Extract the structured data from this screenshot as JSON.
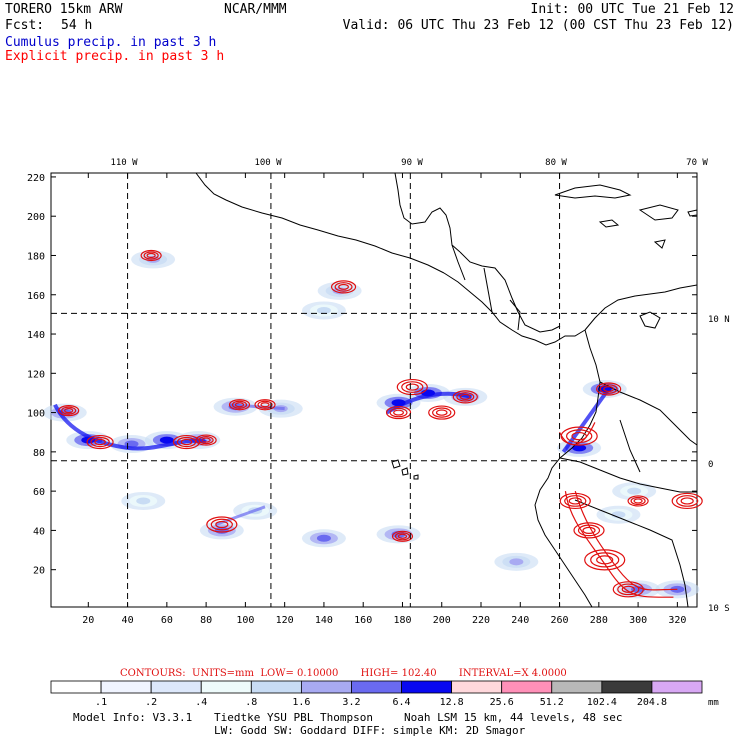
{
  "header": {
    "model": "TORERO  15km ARW",
    "center": "NCAR/MMM",
    "init": "Init: 00 UTC Tue 21 Feb 12",
    "fcst_label": "Fcst:",
    "fcst_value": "54 h",
    "valid": "Valid: 06 UTC Thu 23 Feb 12 (00 CST Thu 23 Feb 12)",
    "cumulus": "Cumulus precip. in past 3 h",
    "explicit": "Explicit precip. in past 3 h"
  },
  "colors": {
    "cumulus_text": "#0000cc",
    "explicit_text": "#ff0000",
    "contour": "#e01010",
    "coast": "#000000"
  },
  "chart_data": {
    "type": "heatmap",
    "title": "Cumulus precip. in past 3 h / Explicit precip. in past 3 h",
    "x_grid": {
      "range": [
        1,
        330
      ],
      "ticks": [
        20,
        40,
        60,
        80,
        100,
        120,
        140,
        160,
        180,
        200,
        220,
        240,
        260,
        280,
        300,
        320
      ]
    },
    "y_grid": {
      "range": [
        1,
        222
      ],
      "ticks": [
        20,
        40,
        60,
        80,
        100,
        120,
        140,
        160,
        180,
        200,
        220
      ]
    },
    "lon_labels": [
      {
        "value": -110,
        "text": "110 W"
      },
      {
        "value": -100,
        "text": "100 W"
      },
      {
        "value": -90,
        "text": "90 W"
      },
      {
        "value": -80,
        "text": "80 W"
      },
      {
        "value": -70,
        "text": "70 W"
      }
    ],
    "lat_labels": [
      {
        "value": 10,
        "text": "10 N"
      },
      {
        "value": 0,
        "text": "0"
      },
      {
        "value": -10,
        "text": "10 S"
      }
    ],
    "meridian_grid_x": [
      40,
      113,
      184,
      260
    ],
    "parallel_grid_y": [
      75.5,
      150.5
    ],
    "contours": {
      "units": "mm",
      "low": 0.1,
      "high": 102.4,
      "interval": 4.0
    },
    "contour_text": {
      "contours": "CONTOURS:",
      "units": "UNITS=mm",
      "low": "LOW= 0.10000",
      "high": "HIGH= 102.40",
      "interval": "INTERVAL=X  4.0000"
    },
    "colorbar": {
      "unit_label": "mm",
      "levels": [
        ".1",
        ".2",
        ".4",
        ".8",
        "1.6",
        "3.2",
        "6.4",
        "12.8",
        "25.6",
        "51.2",
        "102.4",
        "204.8"
      ],
      "colors": [
        "#ffffff",
        "#f0f4ff",
        "#dde8fb",
        "#eefbfb",
        "#c8dcf4",
        "#a8aaf2",
        "#6a6af0",
        "#0808f0",
        "#ffd8dc",
        "#ff90b8",
        "#b8b8b8",
        "#3a3a3a",
        "#d8a8f4"
      ]
    },
    "precip_regions": [
      {
        "grid": [
          8,
          100
        ],
        "level": 6
      },
      {
        "grid": [
          20,
          86
        ],
        "level": 7
      },
      {
        "grid": [
          42,
          84
        ],
        "level": 6
      },
      {
        "grid": [
          60,
          86
        ],
        "level": 7
      },
      {
        "grid": [
          76,
          86
        ],
        "level": 6
      },
      {
        "grid": [
          95,
          103
        ],
        "level": 6
      },
      {
        "grid": [
          118,
          102
        ],
        "level": 5
      },
      {
        "grid": [
          178,
          105
        ],
        "level": 7
      },
      {
        "grid": [
          193,
          110
        ],
        "level": 7
      },
      {
        "grid": [
          212,
          108
        ],
        "level": 6
      },
      {
        "grid": [
          148,
          162
        ],
        "level": 5
      },
      {
        "grid": [
          140,
          152
        ],
        "level": 4
      },
      {
        "grid": [
          53,
          178
        ],
        "level": 5
      },
      {
        "grid": [
          88,
          40
        ],
        "level": 6
      },
      {
        "grid": [
          48,
          55
        ],
        "level": 4
      },
      {
        "grid": [
          105,
          50
        ],
        "level": 4
      },
      {
        "grid": [
          140,
          36
        ],
        "level": 6
      },
      {
        "grid": [
          178,
          38
        ],
        "level": 6
      },
      {
        "grid": [
          270,
          82
        ],
        "level": 7
      },
      {
        "grid": [
          283,
          112
        ],
        "level": 7
      },
      {
        "grid": [
          300,
          10
        ],
        "level": 6
      },
      {
        "grid": [
          320,
          10
        ],
        "level": 6
      },
      {
        "grid": [
          238,
          24
        ],
        "level": 5
      },
      {
        "grid": [
          290,
          48
        ],
        "level": 4
      },
      {
        "grid": [
          298,
          60
        ],
        "level": 4
      }
    ],
    "explicit_cells": [
      {
        "grid": [
          52,
          180
        ],
        "r": 1.0
      },
      {
        "grid": [
          150,
          164
        ],
        "r": 1.2
      },
      {
        "grid": [
          10,
          101
        ],
        "r": 1.0
      },
      {
        "grid": [
          26,
          85
        ],
        "r": 1.3
      },
      {
        "grid": [
          70,
          85
        ],
        "r": 1.3
      },
      {
        "grid": [
          80,
          86
        ],
        "r": 1.0
      },
      {
        "grid": [
          97,
          104
        ],
        "r": 1.0
      },
      {
        "grid": [
          110,
          104
        ],
        "r": 1.0
      },
      {
        "grid": [
          178,
          100
        ],
        "r": 1.2
      },
      {
        "grid": [
          185,
          113
        ],
        "r": 1.5
      },
      {
        "grid": [
          200,
          100
        ],
        "r": 1.3
      },
      {
        "grid": [
          212,
          108
        ],
        "r": 1.2
      },
      {
        "grid": [
          88,
          43
        ],
        "r": 1.5
      },
      {
        "grid": [
          180,
          37
        ],
        "r": 1.0
      },
      {
        "grid": [
          270,
          88
        ],
        "r": 1.8
      },
      {
        "grid": [
          285,
          112
        ],
        "r": 1.2
      },
      {
        "grid": [
          268,
          55
        ],
        "r": 1.5
      },
      {
        "grid": [
          275,
          40
        ],
        "r": 1.5
      },
      {
        "grid": [
          283,
          25
        ],
        "r": 2.0
      },
      {
        "grid": [
          295,
          10
        ],
        "r": 1.5
      },
      {
        "grid": [
          325,
          55
        ],
        "r": 1.5
      },
      {
        "grid": [
          300,
          55
        ],
        "r": 1.0
      }
    ]
  },
  "footer": {
    "model_info": "Model Info: V3.3.1",
    "pbl": "Tiedtke YSU PBL  Thompson",
    "lsm": "Noah LSM  15 km,   44 levels,   48 sec",
    "line2": "LW: Godd SW: Goddard DIFF: simple KM: 2D Smagor"
  }
}
